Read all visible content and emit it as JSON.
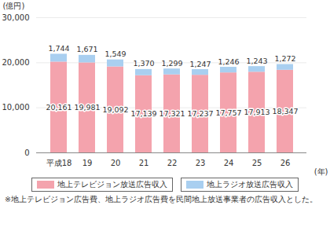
{
  "chart_data": {
    "type": "bar",
    "stacked": true,
    "ylabel": "(億円)",
    "xlabel": "(年)",
    "caption": "※地上テレビジョン広告費、地上ラジオ広告費を民間地上放送事業者の広告収入とした。",
    "categories": [
      "平成18",
      "19",
      "20",
      "21",
      "22",
      "23",
      "24",
      "25",
      "26"
    ],
    "series": [
      {
        "name": "地上テレビジョン放送広告収入",
        "color": "#f4a3ad",
        "values": [
          20161,
          19981,
          19092,
          17139,
          17321,
          17237,
          17757,
          17913,
          18347
        ],
        "value_labels": [
          "20,161",
          "19,981",
          "19,092",
          "17,139",
          "17,321",
          "17,237",
          "17,757",
          "17,913",
          "18,347"
        ]
      },
      {
        "name": "地上ラジオ放送広告収入",
        "color": "#a9cff0",
        "values": [
          1744,
          1671,
          1549,
          1370,
          1299,
          1247,
          1246,
          1243,
          1272
        ],
        "value_labels": [
          "1,744",
          "1,671",
          "1,549",
          "1,370",
          "1,299",
          "1,247",
          "1,246",
          "1,243",
          "1,272"
        ]
      }
    ],
    "ylim": [
      0,
      30000
    ],
    "yticks": [
      0,
      {
        "value": 10000,
        "label": "10,000"
      },
      {
        "value": 20000,
        "label": "20,000"
      },
      {
        "value": 30000,
        "label": "30,000"
      }
    ],
    "grid": true,
    "data_labels": true,
    "legend": "bottom"
  }
}
